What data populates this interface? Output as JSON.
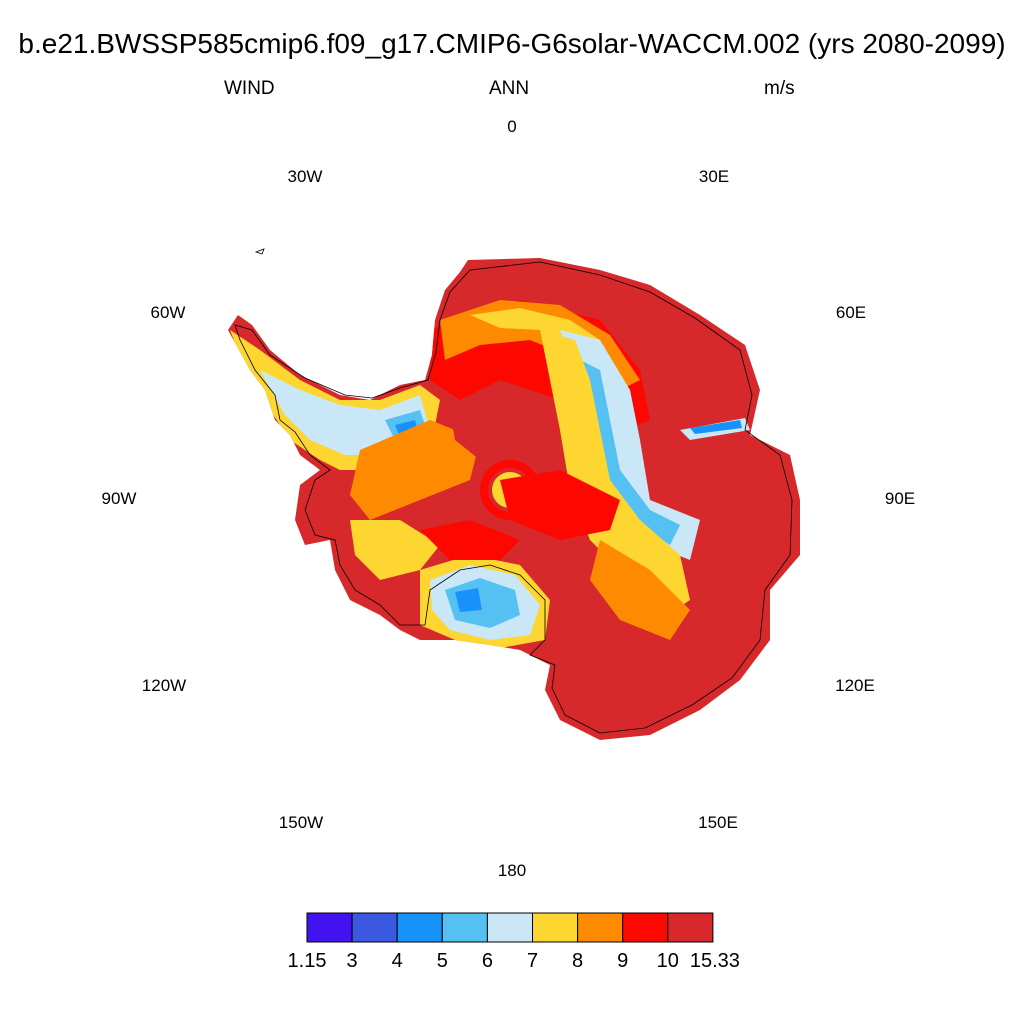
{
  "header": {
    "title": "b.e21.BWSSP585cmip6.f09_g17.CMIP6-G6solar-WACCM.002 (yrs 2080-2099)",
    "variable": "WIND",
    "season": "ANN",
    "units": "m/s"
  },
  "map": {
    "projection": "south polar stereographic",
    "field": "annual mean surface wind speed",
    "longitude_labels": [
      "0",
      "30E",
      "60E",
      "90E",
      "120E",
      "150E",
      "180",
      "150W",
      "120W",
      "90W",
      "60W",
      "30W"
    ],
    "high_wind_regions": [
      "East Antarctic coast",
      "Ross Ice Shelf margin",
      "interior plateau spokes"
    ],
    "low_wind_regions": [
      "Ross Ice Shelf",
      "Filchner-Ronne Ice Shelf",
      "Amery Ice Shelf"
    ]
  },
  "colorbar": {
    "colors": [
      "#4212f0",
      "#3b58e0",
      "#1792fb",
      "#55c1f3",
      "#c9e7f6",
      "#fdd631",
      "#fd8a00",
      "#fd0800",
      "#d7282b"
    ],
    "labels": [
      "1.15",
      "3",
      "4",
      "5",
      "6",
      "7",
      "8",
      "9",
      "10",
      "15.33"
    ]
  }
}
